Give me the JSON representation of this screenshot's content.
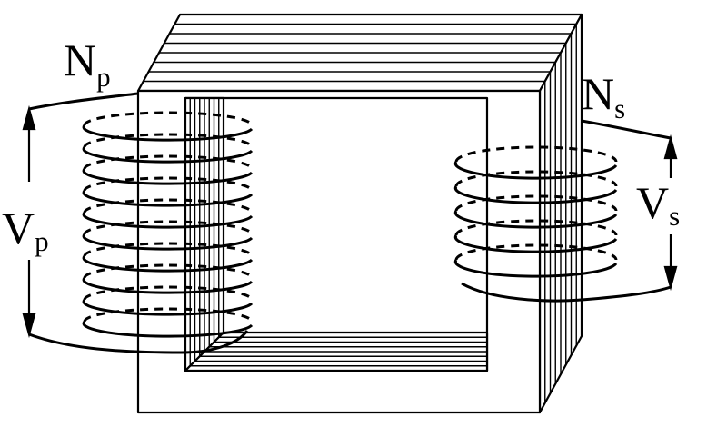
{
  "labels": {
    "primary_turns": {
      "main": "N",
      "sub": "p"
    },
    "secondary_turns": {
      "main": "N",
      "sub": "s"
    },
    "primary_voltage": {
      "main": "V",
      "sub": "p"
    },
    "secondary_voltage": {
      "main": "V",
      "sub": "s"
    }
  },
  "colors": {
    "stroke": "#000000",
    "background": "#ffffff"
  },
  "primary_coil": {
    "turns_drawn": 10
  },
  "secondary_coil": {
    "turns_drawn": 5
  },
  "core": {
    "lamination_lines": 7
  }
}
